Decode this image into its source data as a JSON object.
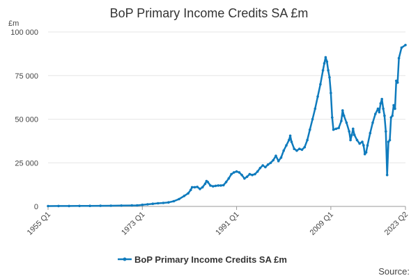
{
  "chart_data": {
    "type": "line",
    "title": "BoP Primary Income Credits SA £m",
    "unit_label": "£m",
    "source_label": "Source:",
    "xlabel": "",
    "ylabel": "",
    "x_range": [
      "1955 Q1",
      "2023 Q2"
    ],
    "x_ticks": [
      "1955 Q1",
      "1973 Q1",
      "1991 Q1",
      "2009 Q1",
      "2023 Q2"
    ],
    "y_ticks": [
      "0",
      "25 000",
      "50 000",
      "75 000",
      "100 000"
    ],
    "ylim": [
      0,
      100000
    ],
    "grid": true,
    "legend_position": "bottom",
    "series": [
      {
        "name": "BoP Primary Income Credits SA £m",
        "color": "#0f7bbd",
        "points": [
          [
            1955.0,
            200
          ],
          [
            1957.0,
            220
          ],
          [
            1959.0,
            250
          ],
          [
            1961.0,
            280
          ],
          [
            1963.0,
            310
          ],
          [
            1965.0,
            360
          ],
          [
            1967.0,
            400
          ],
          [
            1969.0,
            460
          ],
          [
            1971.0,
            550
          ],
          [
            1972.0,
            600
          ],
          [
            1973.0,
            900
          ],
          [
            1974.0,
            1200
          ],
          [
            1975.0,
            1500
          ],
          [
            1976.0,
            1800
          ],
          [
            1977.0,
            2000
          ],
          [
            1978.0,
            2300
          ],
          [
            1979.0,
            3000
          ],
          [
            1980.0,
            4200
          ],
          [
            1981.0,
            6000
          ],
          [
            1981.75,
            7500
          ],
          [
            1982.25,
            9500
          ],
          [
            1982.5,
            11000
          ],
          [
            1983.0,
            11000
          ],
          [
            1983.5,
            11200
          ],
          [
            1984.0,
            10000
          ],
          [
            1984.5,
            11000
          ],
          [
            1985.0,
            13000
          ],
          [
            1985.25,
            14500
          ],
          [
            1985.5,
            14000
          ],
          [
            1986.0,
            12000
          ],
          [
            1986.5,
            11500
          ],
          [
            1987.0,
            11800
          ],
          [
            1987.5,
            12000
          ],
          [
            1988.0,
            12000
          ],
          [
            1988.5,
            12200
          ],
          [
            1989.0,
            14000
          ],
          [
            1989.5,
            16000
          ],
          [
            1990.0,
            18500
          ],
          [
            1990.5,
            19500
          ],
          [
            1991.0,
            20000
          ],
          [
            1991.5,
            19500
          ],
          [
            1992.0,
            18000
          ],
          [
            1992.5,
            16000
          ],
          [
            1993.0,
            17000
          ],
          [
            1993.5,
            18500
          ],
          [
            1994.0,
            18000
          ],
          [
            1994.5,
            18500
          ],
          [
            1995.0,
            20000
          ],
          [
            1995.5,
            22000
          ],
          [
            1996.0,
            23500
          ],
          [
            1996.5,
            22500
          ],
          [
            1997.0,
            24000
          ],
          [
            1997.5,
            25000
          ],
          [
            1998.0,
            26500
          ],
          [
            1998.5,
            29000
          ],
          [
            1999.0,
            26000
          ],
          [
            1999.5,
            28000
          ],
          [
            2000.0,
            32000
          ],
          [
            2000.5,
            35000
          ],
          [
            2001.0,
            38000
          ],
          [
            2001.25,
            40500
          ],
          [
            2001.5,
            37000
          ],
          [
            2002.0,
            33000
          ],
          [
            2002.5,
            32000
          ],
          [
            2003.0,
            33000
          ],
          [
            2003.5,
            32500
          ],
          [
            2004.0,
            34000
          ],
          [
            2004.5,
            38000
          ],
          [
            2005.0,
            44000
          ],
          [
            2005.5,
            50000
          ],
          [
            2006.0,
            56000
          ],
          [
            2006.5,
            63000
          ],
          [
            2007.0,
            70000
          ],
          [
            2007.5,
            78000
          ],
          [
            2007.75,
            82000
          ],
          [
            2008.0,
            85500
          ],
          [
            2008.25,
            83000
          ],
          [
            2008.5,
            78000
          ],
          [
            2008.75,
            74000
          ],
          [
            2009.0,
            65000
          ],
          [
            2009.25,
            51000
          ],
          [
            2009.5,
            44000
          ],
          [
            2010.0,
            44500
          ],
          [
            2010.5,
            45000
          ],
          [
            2011.0,
            49000
          ],
          [
            2011.25,
            55000
          ],
          [
            2011.5,
            52000
          ],
          [
            2012.0,
            48000
          ],
          [
            2012.5,
            43000
          ],
          [
            2012.75,
            38000
          ],
          [
            2013.0,
            41000
          ],
          [
            2013.25,
            44500
          ],
          [
            2013.5,
            41000
          ],
          [
            2014.0,
            38000
          ],
          [
            2014.5,
            36000
          ],
          [
            2015.0,
            37000
          ],
          [
            2015.25,
            35000
          ],
          [
            2015.5,
            30000
          ],
          [
            2015.75,
            31000
          ],
          [
            2016.0,
            35000
          ],
          [
            2016.5,
            42000
          ],
          [
            2017.0,
            48000
          ],
          [
            2017.5,
            53000
          ],
          [
            2018.0,
            56000
          ],
          [
            2018.25,
            54000
          ],
          [
            2018.5,
            59000
          ],
          [
            2018.75,
            61500
          ],
          [
            2019.0,
            56000
          ],
          [
            2019.25,
            52000
          ],
          [
            2019.5,
            43000
          ],
          [
            2019.75,
            18000
          ],
          [
            2020.0,
            37000
          ],
          [
            2020.25,
            38000
          ],
          [
            2020.5,
            51000
          ],
          [
            2020.75,
            52000
          ],
          [
            2021.0,
            58000
          ],
          [
            2021.25,
            56000
          ],
          [
            2021.5,
            72000
          ],
          [
            2021.75,
            71000
          ],
          [
            2022.0,
            85000
          ],
          [
            2022.5,
            91000
          ],
          [
            2023.25,
            92500
          ]
        ]
      }
    ]
  }
}
